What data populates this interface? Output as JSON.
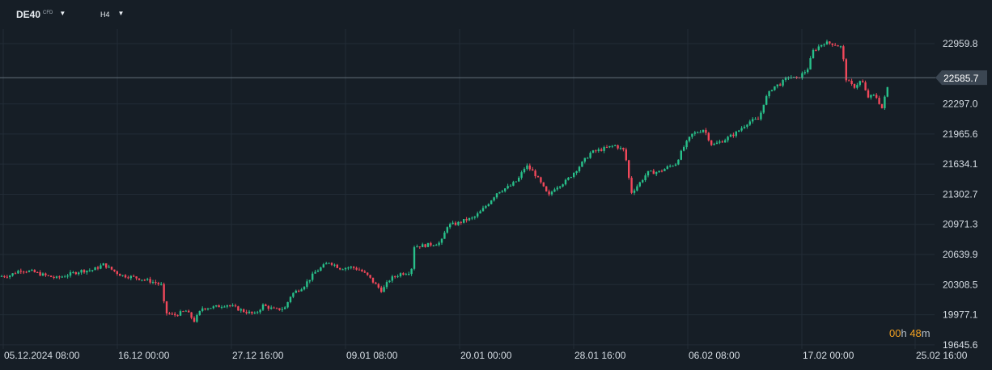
{
  "header": {
    "symbol": "DE40",
    "symbol_tag": "CFD",
    "timeframe": "H4"
  },
  "countdown": {
    "hours": "00",
    "h_unit": "h",
    "minutes": "48",
    "m_unit": "m"
  },
  "colors": {
    "background": "#161e26",
    "grid": "#222c36",
    "up": "#28c08a",
    "down": "#f1485a",
    "text": "#d6dde4",
    "countdown": "#f2a122"
  },
  "chart_data": {
    "type": "candlestick",
    "title": "",
    "xlabel": "",
    "ylabel": "",
    "ylim": [
      19600,
      23120
    ],
    "y_ticks": [
      "22959.8",
      "22297.0",
      "21965.6",
      "21634.1",
      "21302.7",
      "20971.3",
      "20639.9",
      "20308.5",
      "19977.1",
      "19645.6"
    ],
    "x_ticks": [
      "05.12.2024  08:00",
      "16.12  00:00",
      "27.12  16:00",
      "09.01  08:00",
      "20.01  00:00",
      "28.01  16:00",
      "06.02  08:00",
      "17.02  00:00",
      "25.02  16:00"
    ],
    "current_price": "22585.7",
    "grid": true,
    "series_close_path": [
      [
        0,
        20400
      ],
      [
        12,
        20410
      ],
      [
        25,
        20470
      ],
      [
        40,
        20450
      ],
      [
        55,
        20410
      ],
      [
        70,
        20380
      ],
      [
        85,
        20420
      ],
      [
        100,
        20460
      ],
      [
        115,
        20470
      ],
      [
        128,
        20530
      ],
      [
        135,
        20490
      ],
      [
        150,
        20410
      ],
      [
        165,
        20390
      ],
      [
        180,
        20360
      ],
      [
        192,
        20330
      ],
      [
        200,
        20300
      ],
      [
        204,
        20000
      ],
      [
        215,
        19970
      ],
      [
        230,
        20020
      ],
      [
        240,
        19910
      ],
      [
        250,
        20050
      ],
      [
        265,
        20060
      ],
      [
        280,
        20090
      ],
      [
        300,
        20020
      ],
      [
        315,
        19980
      ],
      [
        325,
        20080
      ],
      [
        340,
        20030
      ],
      [
        352,
        20050
      ],
      [
        360,
        20200
      ],
      [
        375,
        20290
      ],
      [
        390,
        20450
      ],
      [
        407,
        20560
      ],
      [
        420,
        20490
      ],
      [
        435,
        20500
      ],
      [
        445,
        20470
      ],
      [
        455,
        20400
      ],
      [
        465,
        20300
      ],
      [
        472,
        20240
      ],
      [
        482,
        20370
      ],
      [
        495,
        20430
      ],
      [
        508,
        20450
      ],
      [
        512,
        20730
      ],
      [
        525,
        20740
      ],
      [
        545,
        20770
      ],
      [
        553,
        20960
      ],
      [
        565,
        20980
      ],
      [
        575,
        21020
      ],
      [
        585,
        21040
      ],
      [
        595,
        21120
      ],
      [
        605,
        21220
      ],
      [
        615,
        21330
      ],
      [
        630,
        21390
      ],
      [
        640,
        21460
      ],
      [
        650,
        21620
      ],
      [
        660,
        21540
      ],
      [
        670,
        21400
      ],
      [
        678,
        21280
      ],
      [
        685,
        21370
      ],
      [
        700,
        21450
      ],
      [
        715,
        21600
      ],
      [
        730,
        21760
      ],
      [
        745,
        21800
      ],
      [
        760,
        21840
      ],
      [
        772,
        21780
      ],
      [
        780,
        21320
      ],
      [
        790,
        21420
      ],
      [
        800,
        21540
      ],
      [
        815,
        21550
      ],
      [
        825,
        21600
      ],
      [
        835,
        21640
      ],
      [
        845,
        21820
      ],
      [
        855,
        21960
      ],
      [
        870,
        22020
      ],
      [
        880,
        21840
      ],
      [
        895,
        21900
      ],
      [
        910,
        21980
      ],
      [
        925,
        22100
      ],
      [
        938,
        22130
      ],
      [
        945,
        22340
      ],
      [
        955,
        22480
      ],
      [
        965,
        22520
      ],
      [
        975,
        22600
      ],
      [
        985,
        22570
      ],
      [
        998,
        22680
      ],
      [
        1005,
        22880
      ],
      [
        1018,
        22970
      ],
      [
        1030,
        22960
      ],
      [
        1040,
        22920
      ],
      [
        1046,
        22560
      ],
      [
        1055,
        22480
      ],
      [
        1065,
        22560
      ],
      [
        1072,
        22370
      ],
      [
        1082,
        22390
      ],
      [
        1090,
        22250
      ],
      [
        1096,
        22450
      ],
      [
        1100,
        22590
      ]
    ]
  }
}
